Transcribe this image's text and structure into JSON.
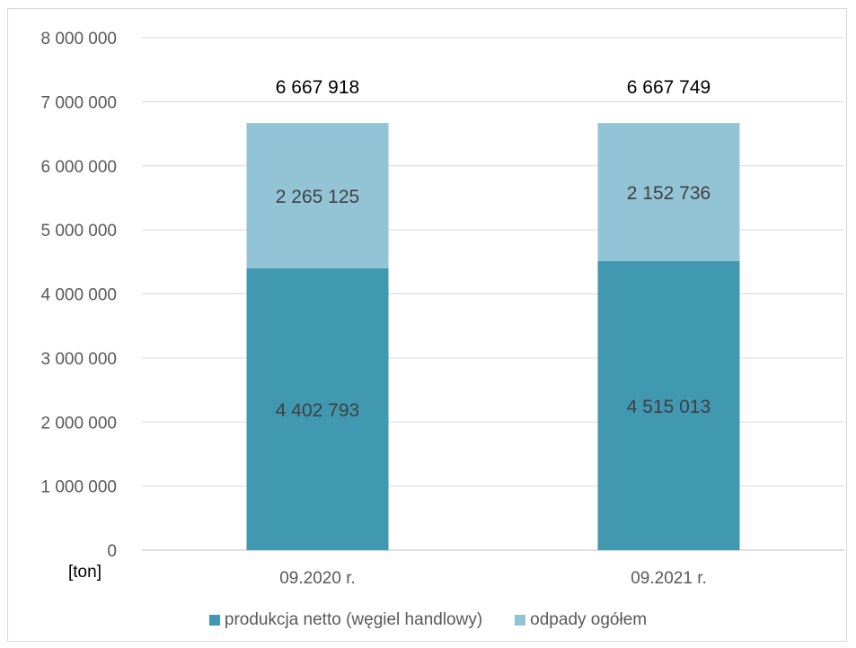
{
  "chart_data": {
    "type": "bar",
    "stacked": true,
    "categories": [
      "09.2020 r.",
      "09.2021 r."
    ],
    "series": [
      {
        "name": "produkcja netto (węgiel handlowy)",
        "values": [
          4402793,
          4515013
        ],
        "labels": [
          "4 402 793",
          "4 515 013"
        ],
        "color": "#4198b1"
      },
      {
        "name": "odpady ogółem",
        "values": [
          2265125,
          2152736
        ],
        "labels": [
          "2 265 125",
          "2 152 736"
        ],
        "color": "#93c4d6"
      }
    ],
    "totals": [
      "6 667 918",
      "6 667 749"
    ],
    "ylim": [
      0,
      8000000
    ],
    "yticks": [
      0,
      1000000,
      2000000,
      3000000,
      4000000,
      5000000,
      6000000,
      7000000,
      8000000
    ],
    "ytick_labels": [
      "0",
      "1 000 000",
      "2 000 000",
      "3 000 000",
      "4 000 000",
      "5 000 000",
      "6 000 000",
      "7 000 000",
      "8 000 000"
    ],
    "unit_label": "[ton]",
    "grid": true,
    "legend_position": "bottom"
  }
}
